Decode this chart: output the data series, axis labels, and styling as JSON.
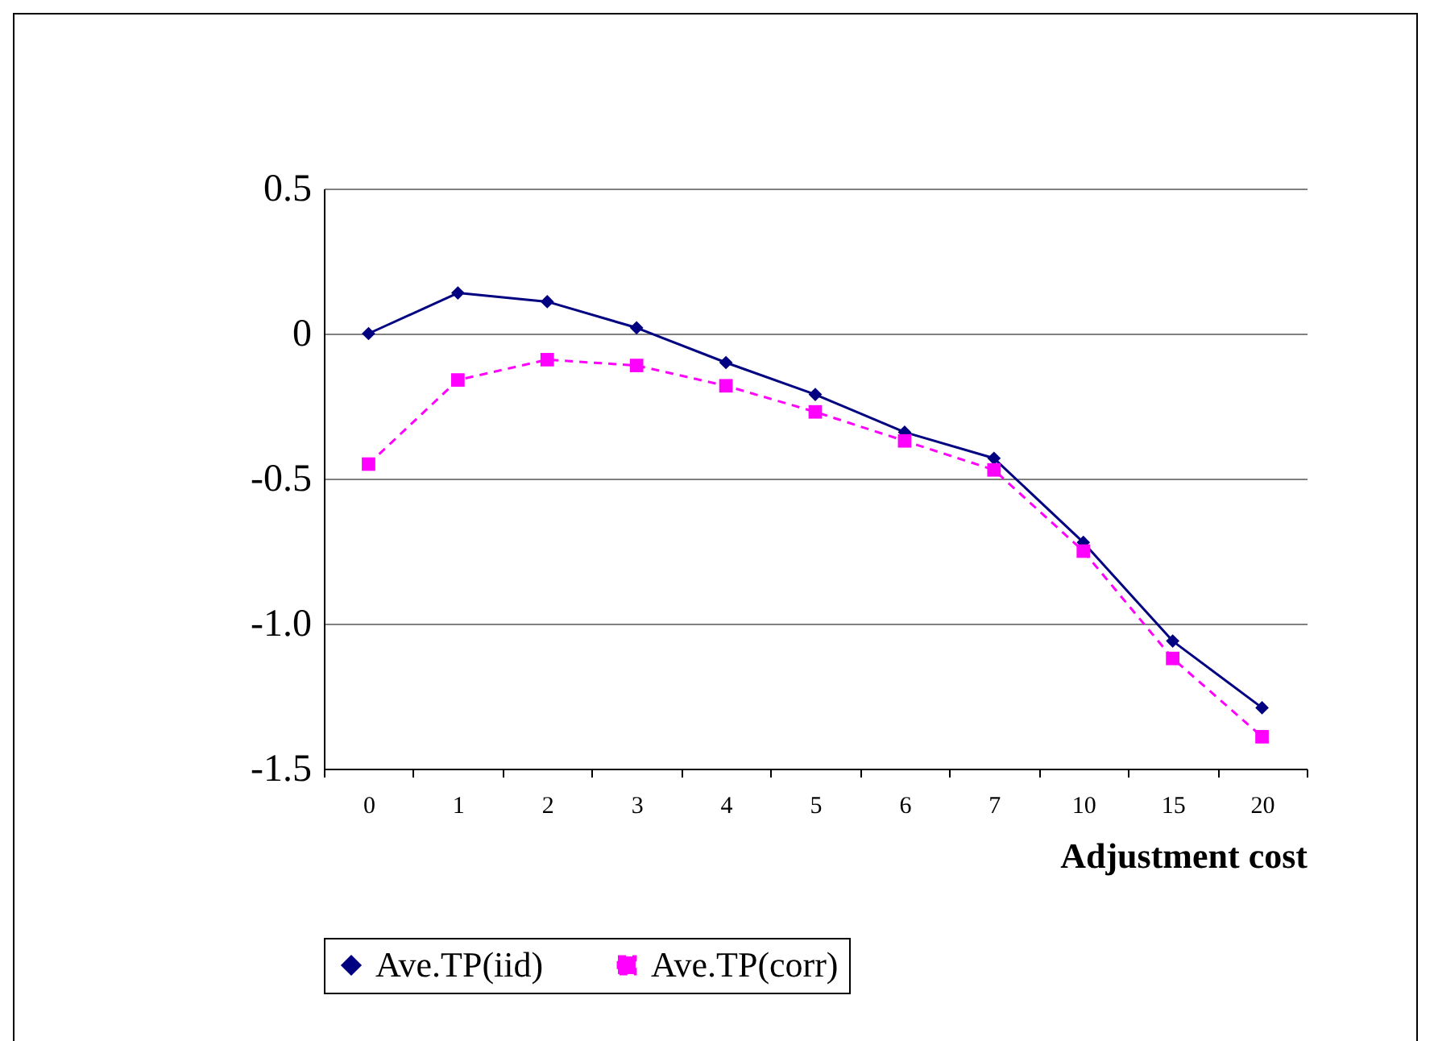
{
  "chart_data": {
    "type": "line",
    "xlabel": "Adjustment cost",
    "categories": [
      "0",
      "1",
      "2",
      "3",
      "4",
      "5",
      "6",
      "7",
      "10",
      "15",
      "20"
    ],
    "series": [
      {
        "name": "Ave.TP(iid)",
        "color": "#000080",
        "marker": "diamond",
        "line_style": "solid",
        "values": [
          0,
          0.14,
          0.11,
          0.02,
          -0.1,
          -0.21,
          -0.34,
          -0.43,
          -0.72,
          -1.06,
          -1.29
        ]
      },
      {
        "name": "Ave.TP(corr)",
        "color": "#ff00ff",
        "marker": "square",
        "line_style": "dashed",
        "values": [
          -0.45,
          -0.16,
          -0.09,
          -0.11,
          -0.18,
          -0.27,
          -0.37,
          -0.47,
          -0.75,
          -1.12,
          -1.39
        ]
      }
    ],
    "ylim": [
      -1.5,
      0.5
    ],
    "yticks": [
      0.5,
      0,
      -0.5,
      {
        "value": -1,
        "label": "-1.0"
      },
      -1.5
    ],
    "grid": "y",
    "legend": "bottom"
  }
}
